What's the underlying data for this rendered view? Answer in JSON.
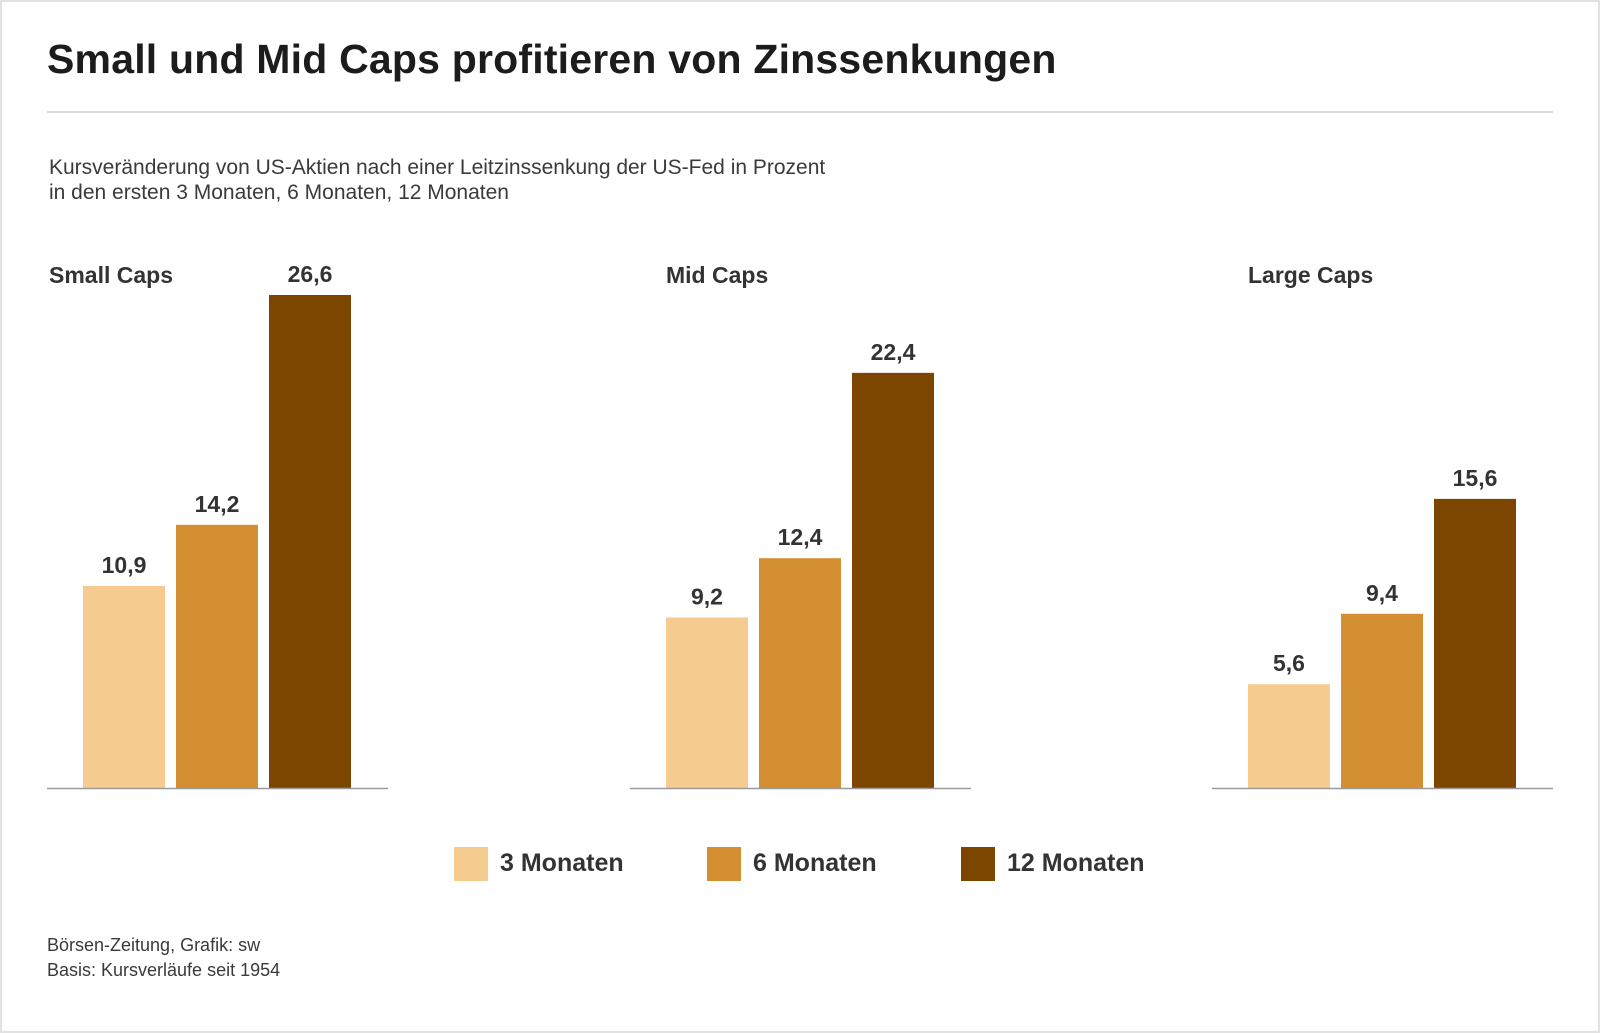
{
  "title": "Small und Mid Caps profitieren von Zinssenkungen",
  "subtitle_line1": "Kursveränderung von US-Aktien nach einer Leitzinssenkung der US-Fed in Prozent",
  "subtitle_line2": "in den ersten 3 Monaten, 6 Monaten, 12 Monaten",
  "source_line1": "Börsen-Zeitung, Grafik: sw",
  "source_line2": "Basis: Kursverläufe seit 1954",
  "colors": {
    "3_monaten": "#f5cb8f",
    "6_monaten": "#d48f33",
    "12_monaten": "#7c4600",
    "axis": "#9a9a9a",
    "label": "#333333"
  },
  "chart_data": {
    "type": "bar",
    "title": "Small und Mid Caps profitieren von Zinssenkungen",
    "xlabel": "",
    "ylabel": "",
    "ylim": [
      0,
      26.6
    ],
    "grid": false,
    "legend_position": "bottom",
    "groups": [
      "Small Caps",
      "Mid Caps",
      "Large Caps"
    ],
    "series": [
      {
        "name": "3 Monaten",
        "key": "3_monaten",
        "values": [
          10.9,
          9.2,
          5.6
        ],
        "labels": [
          "10,9",
          "9,2",
          "5,6"
        ]
      },
      {
        "name": "6 Monaten",
        "key": "6_monaten",
        "values": [
          14.2,
          12.4,
          9.4
        ],
        "labels": [
          "14,2",
          "12,4",
          "9,4"
        ]
      },
      {
        "name": "12 Monaten",
        "key": "12_monaten",
        "values": [
          26.6,
          22.4,
          15.6
        ],
        "labels": [
          "26,6",
          "22,4",
          "15,6"
        ]
      }
    ]
  }
}
